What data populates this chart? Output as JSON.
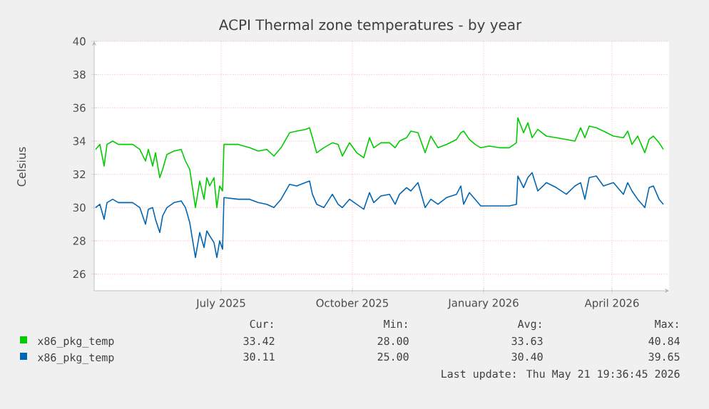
{
  "chart_data": {
    "type": "line",
    "title": "ACPI Thermal zone temperatures - by year",
    "ylabel": "Celsius",
    "xlim": [
      "2025-04-03",
      "2026-05-11"
    ],
    "xticks": [
      {
        "value": "2025-07-01",
        "label": "July 2025"
      },
      {
        "value": "2025-10-01",
        "label": "October 2025"
      },
      {
        "value": "2026-01-01",
        "label": "January 2026"
      },
      {
        "value": "2026-04-01",
        "label": "April 2026"
      }
    ],
    "ylim": [
      25,
      40
    ],
    "yticks": [
      26,
      28,
      30,
      32,
      34,
      36,
      38,
      40
    ],
    "grid": true,
    "legend": "bottom",
    "x": [
      "2025-04-04",
      "2025-04-07",
      "2025-04-10",
      "2025-04-12",
      "2025-04-16",
      "2025-04-20",
      "2025-04-30",
      "2025-05-05",
      "2025-05-09",
      "2025-05-11",
      "2025-05-14",
      "2025-05-16",
      "2025-05-19",
      "2025-05-21",
      "2025-05-24",
      "2025-05-29",
      "2025-06-03",
      "2025-06-06",
      "2025-06-09",
      "2025-06-13",
      "2025-06-16",
      "2025-06-19",
      "2025-06-21",
      "2025-06-23",
      "2025-06-26",
      "2025-06-28",
      "2025-06-30",
      "2025-07-02",
      "2025-07-03",
      "2025-07-13",
      "2025-07-21",
      "2025-07-27",
      "2025-08-02",
      "2025-08-07",
      "2025-08-12",
      "2025-08-18",
      "2025-08-23",
      "2025-08-29",
      "2025-09-01",
      "2025-09-03",
      "2025-09-06",
      "2025-09-11",
      "2025-09-17",
      "2025-09-21",
      "2025-09-24",
      "2025-09-29",
      "2025-10-04",
      "2025-10-09",
      "2025-10-13",
      "2025-10-16",
      "2025-10-21",
      "2025-10-27",
      "2025-10-31",
      "2025-11-03",
      "2025-11-08",
      "2025-11-11",
      "2025-11-16",
      "2025-11-21",
      "2025-11-25",
      "2025-11-30",
      "2025-12-06",
      "2025-12-13",
      "2025-12-16",
      "2025-12-18",
      "2025-12-22",
      "2025-12-26",
      "2025-12-30",
      "2026-01-05",
      "2026-01-12",
      "2026-01-19",
      "2026-01-24",
      "2026-01-25",
      "2026-01-29",
      "2026-02-01",
      "2026-02-04",
      "2026-02-08",
      "2026-02-14",
      "2026-02-21",
      "2026-02-28",
      "2026-03-06",
      "2026-03-10",
      "2026-03-13",
      "2026-03-16",
      "2026-03-21",
      "2026-03-26",
      "2026-04-02",
      "2026-04-09",
      "2026-04-12",
      "2026-04-15",
      "2026-04-19",
      "2026-04-24",
      "2026-04-27",
      "2026-04-30",
      "2026-05-04",
      "2026-05-07"
    ],
    "series": [
      {
        "name": "x86_pkg_temp",
        "color": "#00cc00",
        "values": [
          33.5,
          33.8,
          32.5,
          33.8,
          34.0,
          33.8,
          33.8,
          33.5,
          32.8,
          33.5,
          32.5,
          33.3,
          31.8,
          32.3,
          33.2,
          33.4,
          33.5,
          32.8,
          32.3,
          30.0,
          31.6,
          30.5,
          31.8,
          31.3,
          31.8,
          30.0,
          31.3,
          31.0,
          33.8,
          33.8,
          33.6,
          33.4,
          33.5,
          33.1,
          33.6,
          34.5,
          34.6,
          34.7,
          34.8,
          34.2,
          33.3,
          33.6,
          33.9,
          33.8,
          33.1,
          33.9,
          33.3,
          33.0,
          34.2,
          33.6,
          33.9,
          33.9,
          33.6,
          34.0,
          34.2,
          34.6,
          34.5,
          33.3,
          34.3,
          33.6,
          33.8,
          34.1,
          34.5,
          34.6,
          34.1,
          33.8,
          33.6,
          33.7,
          33.6,
          33.6,
          33.9,
          35.4,
          34.5,
          35.1,
          34.2,
          34.7,
          34.3,
          34.2,
          34.1,
          34.0,
          34.8,
          34.2,
          34.9,
          34.8,
          34.6,
          34.3,
          34.2,
          34.6,
          33.8,
          34.3,
          33.3,
          34.1,
          34.3,
          33.9,
          33.5
        ]
      },
      {
        "name": "x86_pkg_temp",
        "color": "#0066b3",
        "values": [
          30.0,
          30.2,
          29.3,
          30.3,
          30.5,
          30.3,
          30.3,
          30.0,
          29.0,
          29.9,
          30.0,
          29.3,
          28.5,
          29.5,
          30.0,
          30.3,
          30.4,
          30.0,
          29.1,
          27.0,
          28.5,
          27.6,
          28.6,
          28.3,
          27.9,
          27.0,
          28.0,
          27.5,
          30.6,
          30.5,
          30.5,
          30.3,
          30.2,
          30.0,
          30.5,
          31.4,
          31.3,
          31.5,
          31.6,
          30.8,
          30.2,
          30.0,
          30.8,
          30.2,
          30.0,
          30.5,
          30.2,
          29.9,
          30.9,
          30.3,
          30.7,
          30.8,
          30.2,
          30.8,
          31.2,
          31.0,
          31.5,
          30.0,
          30.5,
          30.2,
          30.6,
          30.8,
          31.3,
          30.2,
          30.9,
          30.5,
          30.1,
          30.1,
          30.1,
          30.1,
          30.2,
          31.9,
          31.2,
          31.8,
          32.1,
          31.0,
          31.5,
          31.2,
          30.8,
          31.3,
          31.5,
          30.5,
          31.8,
          31.9,
          31.3,
          31.5,
          30.8,
          31.5,
          31.0,
          30.5,
          30.0,
          31.2,
          31.3,
          30.5,
          30.2
        ]
      }
    ],
    "annotations": [
      "Cur:",
      "Min:",
      "Avg:",
      "Max:",
      "33.42",
      "28.00",
      "33.63",
      "40.84",
      "30.11",
      "25.00",
      "30.40",
      "39.65",
      "Last update: Thu May 21 19:36:45 2026"
    ]
  }
}
